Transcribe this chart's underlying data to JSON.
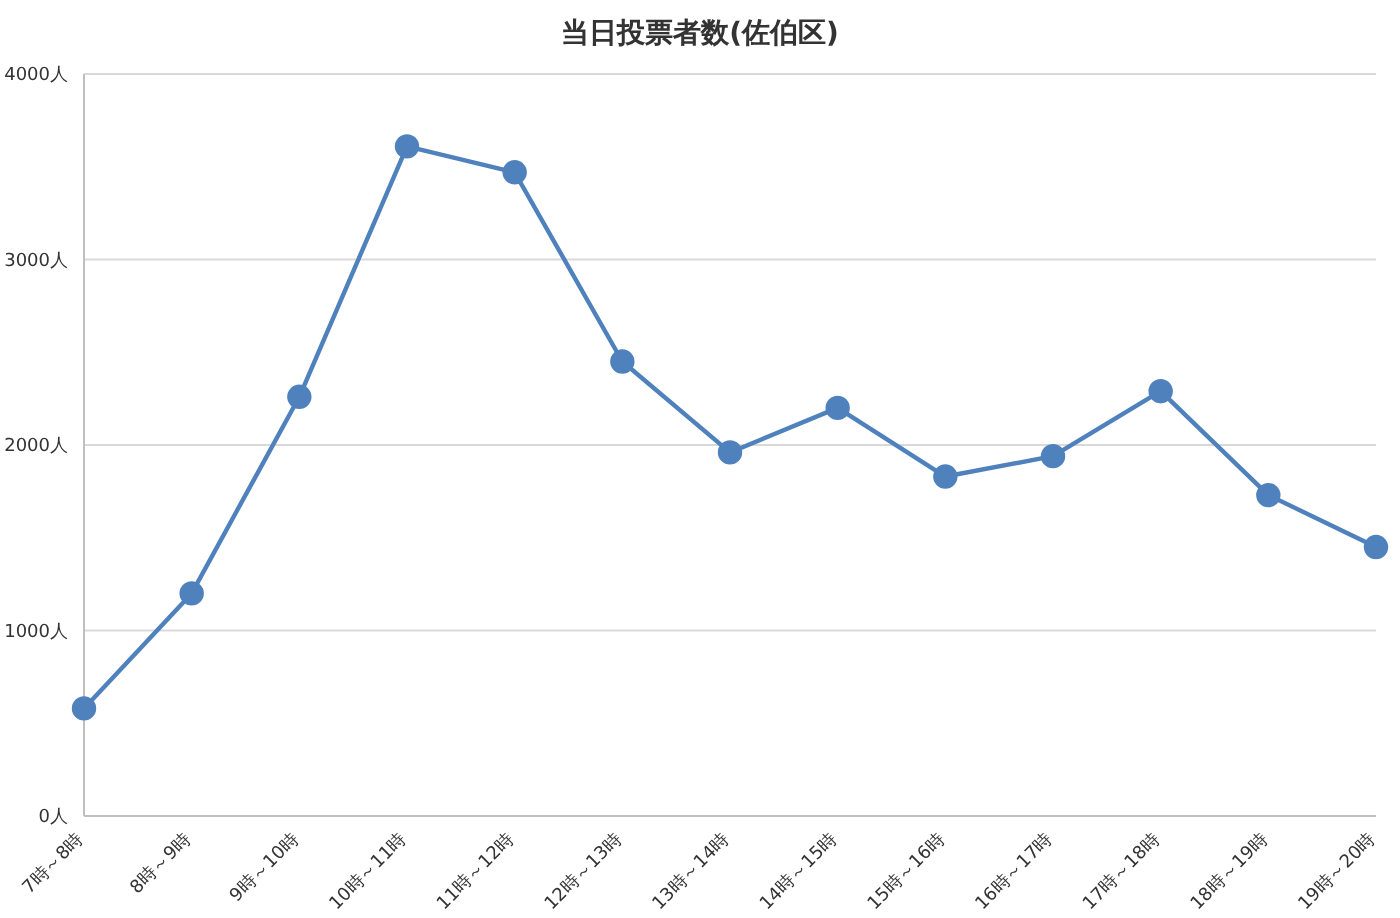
{
  "chart_data": {
    "type": "line",
    "title": "当日投票者数(佐伯区)",
    "categories": [
      "7時～8時",
      "8時～9時",
      "9時～10時",
      "10時～11時",
      "11時～12時",
      "12時～13時",
      "13時～14時",
      "14時～15時",
      "15時～16時",
      "16時～17時",
      "17時～18時",
      "18時～19時",
      "19時～20時"
    ],
    "series": [
      {
        "color": "#4f81bd",
        "values": [
          580,
          1200,
          2260,
          3610,
          3470,
          2450,
          1960,
          2200,
          1830,
          1940,
          2290,
          1730,
          1450
        ]
      }
    ],
    "ylim": [
      0,
      4000
    ],
    "yticks": [
      {
        "value": 0,
        "label": "0人"
      },
      {
        "value": 1000,
        "label": "1000人"
      },
      {
        "value": 2000,
        "label": "2000人"
      },
      {
        "value": 3000,
        "label": "3000人"
      },
      {
        "value": 4000,
        "label": "4000人"
      }
    ],
    "grid": "y",
    "marker": "circle",
    "line_style": "solid",
    "legend": false
  }
}
